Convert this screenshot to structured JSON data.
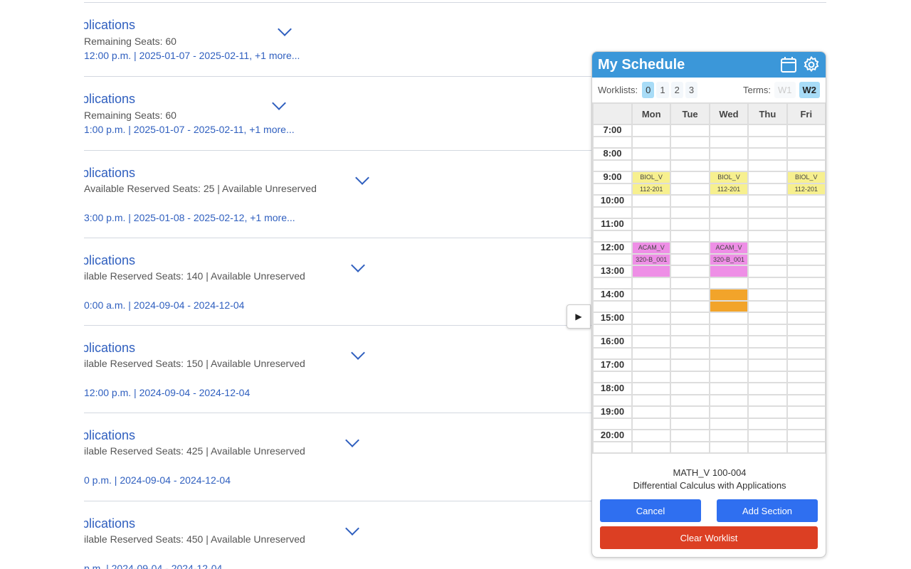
{
  "courses": [
    {
      "title": "plications",
      "seats": "Remaining Seats: 60",
      "date": "12:00 p.m. | 2025-01-07 - 2025-02-11, +1 more..."
    },
    {
      "title": "plications",
      "seats": "Remaining Seats: 60",
      "date": "1:00 p.m. | 2025-01-07 - 2025-02-11, +1 more..."
    },
    {
      "title": "plications",
      "seats": "Available Reserved Seats: 25   |   Available Unreserved",
      "date": " 3:00 p.m. | 2025-01-08 - 2025-02-12, +1 more..."
    },
    {
      "title": "plications",
      "seats": "ilable Reserved Seats: 140   |   Available Unreserved",
      "date": "0:00 a.m. | 2024-09-04 - 2024-12-04"
    },
    {
      "title": "plications",
      "seats": "ilable Reserved Seats: 150   |   Available Unreserved",
      "date": "12:00 p.m. | 2024-09-04 - 2024-12-04"
    },
    {
      "title": "plications",
      "seats": "ilable Reserved Seats: 425   |   Available Unreserved",
      "date": "0 p.m. | 2024-09-04 - 2024-12-04"
    },
    {
      "title": "plications",
      "seats": "ilable Reserved Seats: 450   |   Available Unreserved",
      "date": "p.m. | 2024-09-04 - 2024-12-04"
    }
  ],
  "schedule": {
    "title": "My Schedule",
    "worklists_label": "Worklists:",
    "worklists": [
      "0",
      "1",
      "2",
      "3"
    ],
    "active_worklist": "0",
    "terms_label": "Terms:",
    "terms": [
      "W1",
      "W2"
    ],
    "active_term": "W2",
    "days": [
      "Mon",
      "Tue",
      "Wed",
      "Thu",
      "Fri"
    ],
    "hours": [
      "7:00",
      "8:00",
      "9:00",
      "10:00",
      "11:00",
      "12:00",
      "13:00",
      "14:00",
      "15:00",
      "16:00",
      "17:00",
      "18:00",
      "19:00",
      "20:00"
    ],
    "events": [
      {
        "days": [
          0,
          2,
          4
        ],
        "start": "9:00",
        "end": "10:00",
        "lines": [
          "BIOL_V",
          "112-201"
        ],
        "color": "#f7f08f"
      },
      {
        "days": [
          0,
          2
        ],
        "start": "12:00",
        "end": "13:30",
        "lines": [
          "ACAM_V",
          "320-B_001",
          ""
        ],
        "color": "#ee8fe6"
      },
      {
        "days": [
          2
        ],
        "start": "14:00",
        "end": "15:00",
        "lines": [
          "",
          ""
        ],
        "color": "#f2a42a"
      }
    ],
    "selected_course": "MATH_V 100-004",
    "selected_title": "Differential Calculus with Applications",
    "cancel": "Cancel",
    "add": "Add Section",
    "clear": "Clear Worklist",
    "colors": {
      "header": "#3b97d9",
      "primary": "#2f6ff0",
      "danger": "#dc3f23"
    }
  }
}
